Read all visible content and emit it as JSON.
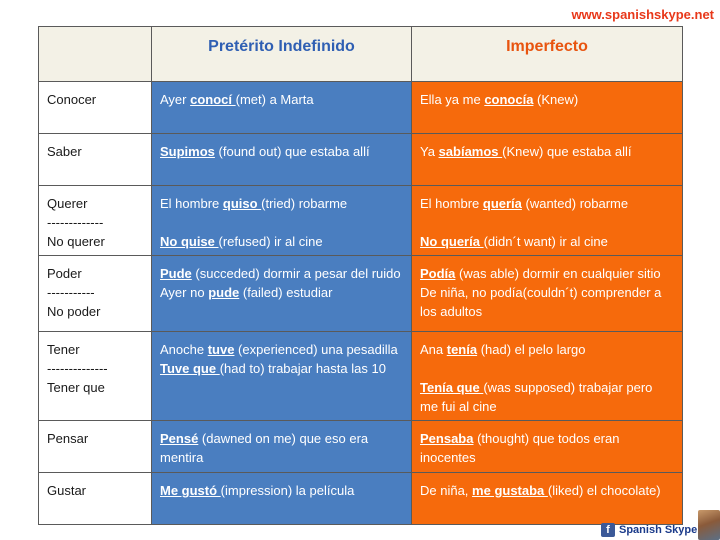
{
  "site": {
    "url": "www.spanishskype.net"
  },
  "header": {
    "col1": "",
    "col2": "Pretérito Indefinido",
    "col3": "Imperfecto"
  },
  "rows": [
    {
      "verb": [
        "Conocer"
      ],
      "pret": [
        [
          [
            "Ayer ",
            false
          ],
          [
            "conocí ",
            true
          ],
          [
            "(met) a Marta",
            false
          ]
        ]
      ],
      "imp": [
        [
          [
            "Ella ya me ",
            false
          ],
          [
            "conocía",
            true
          ],
          [
            " (Knew)",
            false
          ]
        ]
      ]
    },
    {
      "verb": [
        "Saber"
      ],
      "pret": [
        [
          [
            "Supimos",
            true
          ],
          [
            " (found out)  que estaba allí",
            false
          ]
        ]
      ],
      "imp": [
        [
          [
            "Ya ",
            false
          ],
          [
            "sabíamos ",
            true
          ],
          [
            "(Knew) que estaba allí",
            false
          ]
        ]
      ]
    },
    {
      "verb": [
        "Querer",
        "-------------",
        "No querer"
      ],
      "pret": [
        [
          [
            "El hombre ",
            false
          ],
          [
            "quiso ",
            true
          ],
          [
            "(tried) robarme",
            false
          ]
        ],
        [],
        [
          [
            "No quise ",
            true
          ],
          [
            "(refused) ir al cine",
            false
          ]
        ]
      ],
      "imp": [
        [
          [
            "El hombre ",
            false
          ],
          [
            "quería",
            true
          ],
          [
            " (wanted) robarme",
            false
          ]
        ],
        [],
        [
          [
            "No quería ",
            true
          ],
          [
            "(didn´t want) ir al cine",
            false
          ]
        ]
      ]
    },
    {
      "verb": [
        "Poder",
        "-----------",
        "No poder"
      ],
      "pret": [
        [
          [
            "Pude",
            true
          ],
          [
            " (succeded) dormir a pesar del ruido",
            false
          ]
        ],
        [
          [
            "Ayer no ",
            false
          ],
          [
            "pude",
            true
          ],
          [
            " (failed) estudiar",
            false
          ]
        ]
      ],
      "imp": [
        [
          [
            "Podía",
            true
          ],
          [
            " (was able) dormir en cualquier sitio",
            false
          ]
        ],
        [
          [
            "De niña, no podía(couldn´t) comprender a los adultos",
            false
          ]
        ]
      ]
    },
    {
      "verb": [
        "Tener",
        "--------------",
        "Tener que"
      ],
      "pret": [
        [
          [
            "Anoche ",
            false
          ],
          [
            "tuve",
            true
          ],
          [
            " (experienced) una pesadilla",
            false
          ]
        ],
        [
          [
            "Tuve que ",
            true
          ],
          [
            "(had to) trabajar hasta las 10",
            false
          ]
        ]
      ],
      "imp": [
        [
          [
            "Ana ",
            false
          ],
          [
            "tenía",
            true
          ],
          [
            " (had) el pelo largo",
            false
          ]
        ],
        [],
        [
          [
            "Tenía que ",
            true
          ],
          [
            "(was supposed) trabajar pero me fui al cine",
            false
          ]
        ]
      ]
    },
    {
      "verb": [
        "Pensar"
      ],
      "pret": [
        [
          [
            "Pensé",
            true
          ],
          [
            " (dawned on me) que eso era mentira",
            false
          ]
        ]
      ],
      "imp": [
        [
          [
            "Pensaba",
            true
          ],
          [
            " (thought) que todos eran inocentes",
            false
          ]
        ]
      ]
    },
    {
      "verb": [
        "Gustar"
      ],
      "pret": [
        [
          [
            "Me gustó ",
            true
          ],
          [
            "(impression) la película",
            false
          ]
        ]
      ],
      "imp": [
        [
          [
            "De niña, ",
            false
          ],
          [
            "me gustaba ",
            true
          ],
          [
            "(liked) el chocolate)",
            false
          ]
        ]
      ]
    }
  ],
  "footer": {
    "brand": "Spanish Skype",
    "icon": "facebook-icon"
  },
  "colors": {
    "preterito": "#4a7ec0",
    "imperfecto": "#f66a0c",
    "site_url": "#e8381a"
  }
}
